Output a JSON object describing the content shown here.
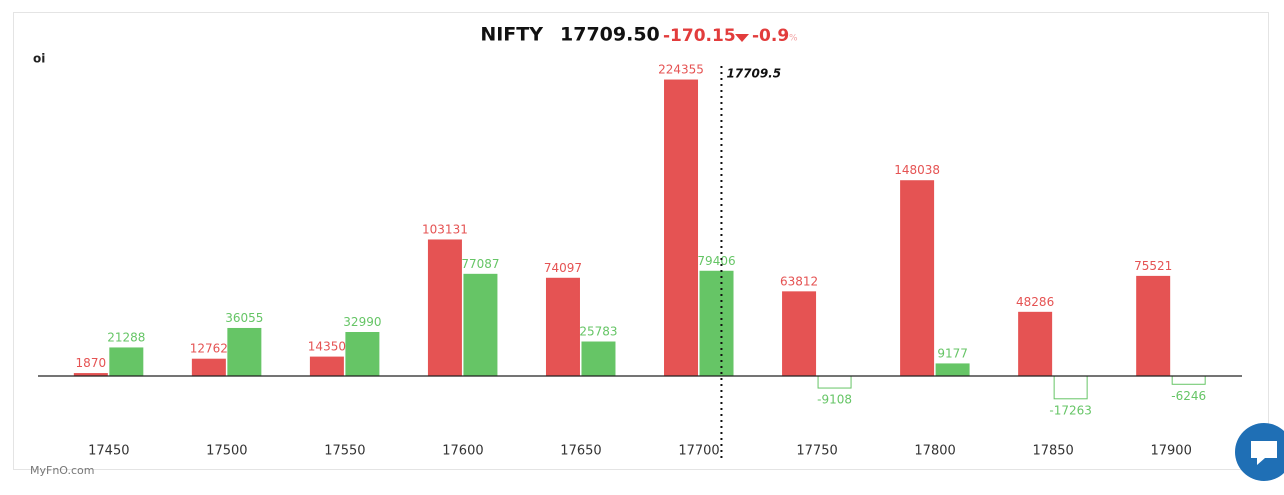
{
  "chart_data": {
    "type": "bar",
    "title": "NIFTY",
    "price": "17709.50",
    "change": -170.15,
    "change_pct": -0.9,
    "pct_unit": "%",
    "y_label": "oi",
    "watermark": "MyFnO.com",
    "x": [
      17450,
      17500,
      17550,
      17600,
      17650,
      17700,
      17750,
      17800,
      17850,
      17900
    ],
    "xlim": [
      17420,
      17930
    ],
    "spot": 17709.5,
    "ylim": [
      -40000,
      240000
    ],
    "series": [
      {
        "color": "#e55353",
        "values": [
          1870,
          12762,
          14350,
          103131,
          74097,
          224355,
          63812,
          148038,
          48286,
          75521
        ]
      },
      {
        "color": "#66c566",
        "values": [
          21288,
          36055,
          32990,
          77087,
          25783,
          79406,
          -9108,
          9177,
          -17263,
          -6246
        ]
      }
    ]
  }
}
